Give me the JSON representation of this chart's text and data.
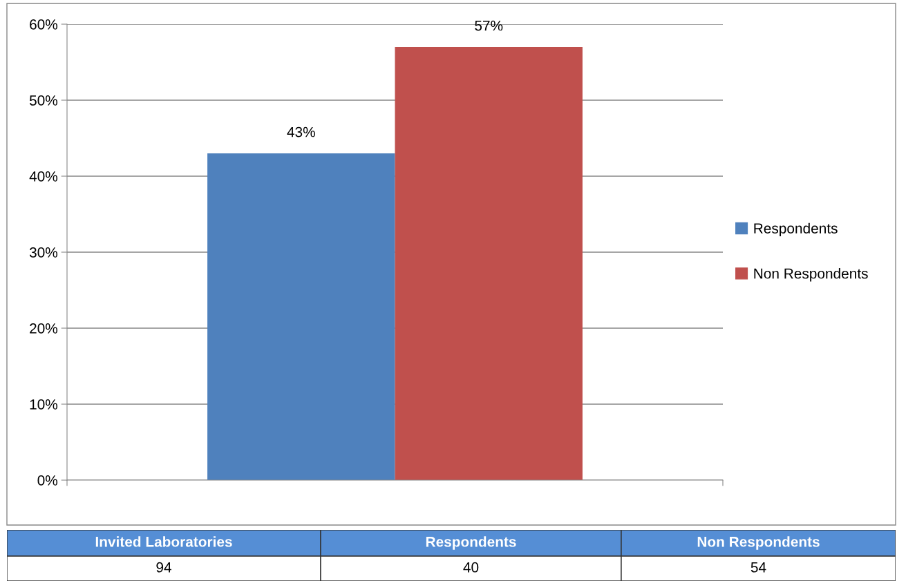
{
  "chart_data": [
    {
      "type": "bar",
      "categories": [
        null
      ],
      "series": [
        {
          "name": "Respondents",
          "color": "#4f81bd",
          "values": [
            43
          ],
          "value_labels": [
            "43%"
          ]
        },
        {
          "name": "Non Respondents",
          "color": "#c0504d",
          "values": [
            57
          ],
          "value_labels": [
            "57%"
          ]
        }
      ],
      "ylim": [
        0,
        60
      ],
      "yticks": [
        {
          "value": 0,
          "label": "0%"
        },
        {
          "value": 10,
          "label": "10%"
        },
        {
          "value": 20,
          "label": "20%"
        },
        {
          "value": 30,
          "label": "30%"
        },
        {
          "value": 40,
          "label": "40%"
        },
        {
          "value": 50,
          "label": "50%"
        },
        {
          "value": 60,
          "label": "60%"
        }
      ],
      "grid": "y",
      "legend": "right"
    },
    {
      "type": "other",
      "categories": [
        "Invited Laboratories",
        "Respondents",
        "Non Respondents"
      ],
      "values": [
        94,
        40,
        54
      ],
      "data_labels": true
    }
  ]
}
